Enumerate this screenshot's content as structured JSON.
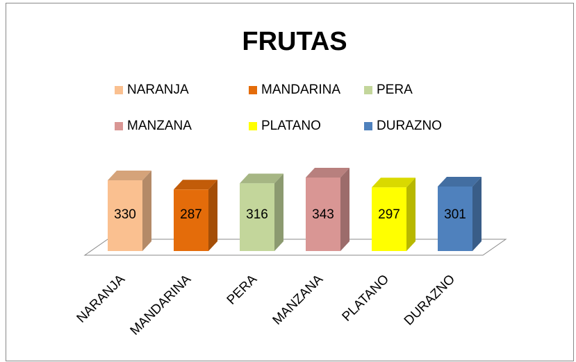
{
  "chart_data": {
    "type": "bar",
    "title": "FRUTAS",
    "categories": [
      "NARANJA",
      "MANDARINA",
      "PERA",
      "MANZANA",
      "PLATANO",
      "DURAZNO"
    ],
    "values": [
      330,
      287,
      316,
      343,
      297,
      301
    ],
    "colors": [
      "#fac090",
      "#e46c0a",
      "#c3d69b",
      "#d99694",
      "#ffff00",
      "#4f81bd"
    ],
    "legend": "top"
  }
}
